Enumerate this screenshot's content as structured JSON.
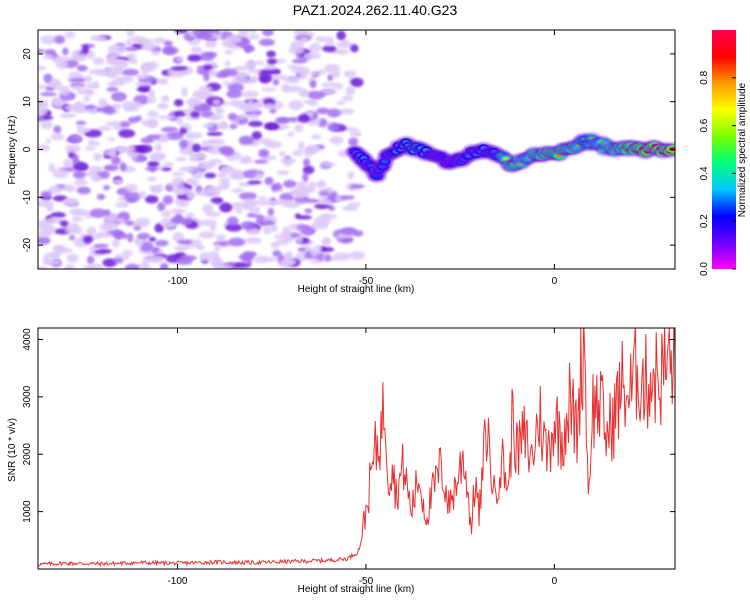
{
  "title": "PAZ1.2024.262.11.40.G23",
  "colors": {
    "snr_line": "#e83030",
    "spec_point_low": "#b07de8",
    "spec_point_mid": "#6a1fd8",
    "axis": "#000000"
  },
  "chart_data": [
    {
      "type": "heatmap",
      "xlabel": "Height of straight line (km)",
      "ylabel": "Frequency (Hz)",
      "xlim": [
        -137,
        32
      ],
      "ylim": [
        -25,
        25
      ],
      "xticks": [
        -100,
        -50,
        0
      ],
      "yticks": [
        -20,
        -10,
        0,
        10,
        20
      ],
      "grid": false,
      "colorbar": {
        "label": "Normalized spectral amplitude",
        "range": [
          0,
          1
        ],
        "ticks": [
          0.0,
          0.2,
          0.4,
          0.6,
          0.8
        ],
        "colormap": [
          "#ff00ff",
          "#6a00ff",
          "#0000ff",
          "#00c8ff",
          "#00ff7a",
          "#7aff00",
          "#ffff00",
          "#ff9a00",
          "#ff0000",
          "#ff0050"
        ]
      },
      "ridge": {
        "x": [
          -53,
          -50,
          -47,
          -44,
          -40,
          -36,
          -32,
          -28,
          -24,
          -20,
          -16,
          -12,
          -8,
          -4,
          0,
          4,
          8,
          12,
          16,
          20,
          24,
          28,
          32
        ],
        "y": [
          0,
          -3,
          -5,
          -1,
          1,
          0,
          -1,
          -3,
          -2,
          0,
          -1,
          -3,
          -2,
          -1,
          -1,
          0,
          2,
          1,
          0,
          0,
          0,
          0,
          0
        ],
        "amp": [
          0.3,
          0.35,
          0.25,
          0.3,
          0.4,
          0.45,
          0.3,
          0.2,
          0.3,
          0.35,
          0.3,
          0.75,
          0.6,
          0.7,
          0.8,
          0.75,
          0.5,
          0.6,
          0.65,
          0.8,
          0.9,
          0.95,
          0.9
        ]
      }
    },
    {
      "type": "line",
      "xlabel": "Height of straight line (km)",
      "ylabel": "SNR (10 * v/v)",
      "xlim": [
        -137,
        32
      ],
      "ylim": [
        0,
        4200
      ],
      "xticks": [
        -100,
        -50,
        0
      ],
      "yticks": [
        1000,
        2000,
        3000,
        4000
      ],
      "grid": false,
      "series": [
        {
          "x": [
            -137,
            -130,
            -120,
            -110,
            -100,
            -90,
            -80,
            -70,
            -60,
            -55,
            -52,
            -50,
            -48,
            -46,
            -45,
            -44,
            -43,
            -42,
            -40,
            -38,
            -36,
            -34,
            -32,
            -30,
            -28,
            -26,
            -24,
            -22,
            -21,
            -20,
            -18,
            -16,
            -14,
            -12,
            -11,
            -10,
            -8,
            -6,
            -4,
            -2,
            0,
            2,
            4,
            6,
            7,
            8,
            9,
            10,
            12,
            14,
            16,
            18,
            20,
            22,
            24,
            26,
            28,
            30,
            32
          ],
          "y": [
            80,
            100,
            90,
            110,
            100,
            120,
            110,
            130,
            150,
            180,
            300,
            1000,
            1900,
            2400,
            2900,
            1600,
            1900,
            1300,
            1800,
            1000,
            1600,
            900,
            1400,
            1800,
            1100,
            1500,
            2000,
            700,
            1600,
            900,
            2500,
            1300,
            1900,
            1400,
            2900,
            2000,
            2300,
            1900,
            2700,
            2000,
            2600,
            2300,
            2900,
            2400,
            3400,
            4200,
            1200,
            2800,
            2900,
            2300,
            2700,
            3200,
            3000,
            3500,
            3200,
            3400,
            3300,
            3600,
            3600
          ]
        }
      ]
    }
  ]
}
